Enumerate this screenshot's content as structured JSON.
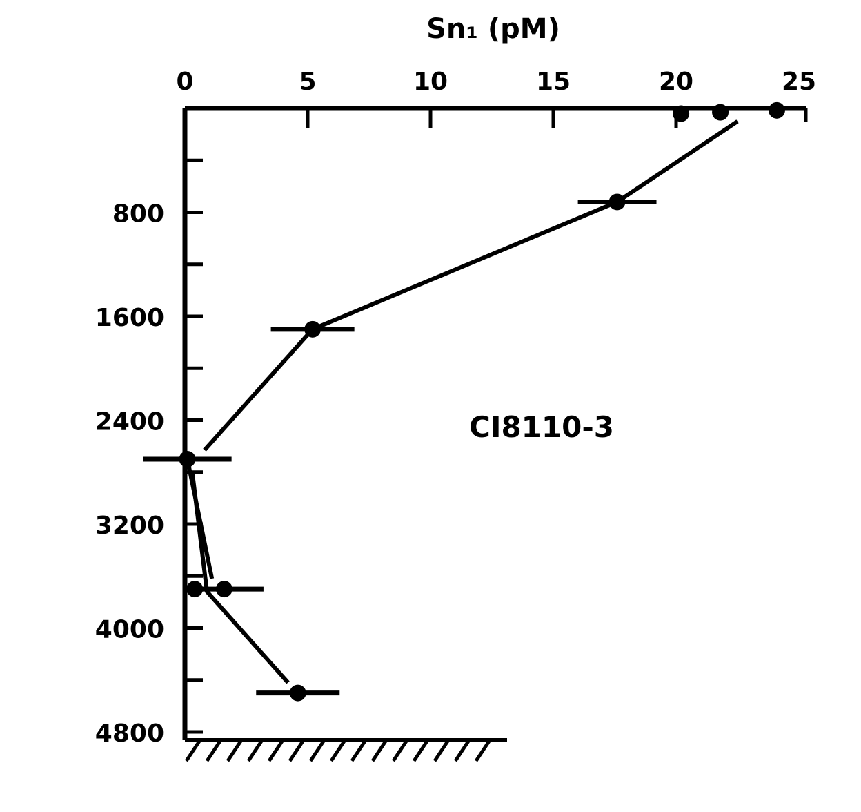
{
  "chart_data": {
    "type": "line",
    "title": "",
    "xlabel": "Sn₁ (pM)",
    "ylabel": "",
    "xlim": [
      0,
      25
    ],
    "ylim": [
      0,
      4800
    ],
    "y_inverted": true,
    "x_axis_position": "top",
    "x_ticks": [
      "0",
      "5",
      "10",
      "15",
      "20",
      "25"
    ],
    "y_ticks": [
      "800",
      "1600",
      "2400",
      "3200",
      "4000",
      "4800"
    ],
    "annotation": "CI8110-3",
    "grid": false,
    "points": [
      {
        "x": 20.2,
        "y": 40,
        "xerr": 0
      },
      {
        "x": 21.8,
        "y": 30,
        "xerr": 0
      },
      {
        "x": 24.1,
        "y": 15,
        "xerr": 0.3
      },
      {
        "x": 17.6,
        "y": 720,
        "xerr": 1.6
      },
      {
        "x": 5.2,
        "y": 1700,
        "xerr": 1.7
      },
      {
        "x": 0.1,
        "y": 2700,
        "xerr": 1.8
      },
      {
        "x": 0.4,
        "y": 3700,
        "xerr": 0
      },
      {
        "x": 1.6,
        "y": 3700,
        "xerr": 1.6
      },
      {
        "x": 4.6,
        "y": 4500,
        "xerr": 1.7
      }
    ],
    "series": [
      {
        "x": [
          22.5,
          17.6,
          5.2,
          0.8
        ],
        "y": [
          100,
          720,
          1700,
          2630
        ]
      },
      {
        "x": [
          0.1,
          1.1
        ],
        "y": [
          2700,
          3620
        ]
      },
      {
        "x": [
          0.3,
          0.9,
          4.2
        ],
        "y": [
          2800,
          3720,
          4420
        ]
      }
    ]
  }
}
